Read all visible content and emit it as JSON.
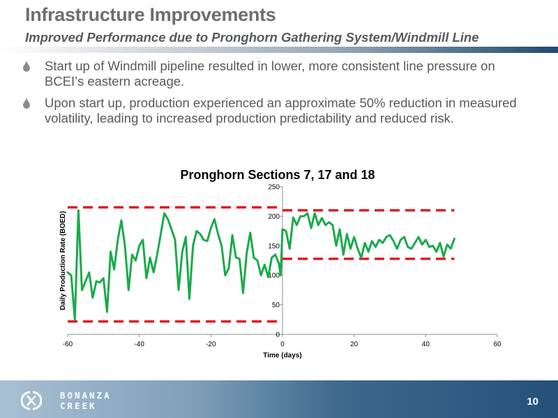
{
  "slide": {
    "title": "Infrastructure Improvements",
    "subtitle": "Improved Performance due to Pronghorn Gathering System/Windmill Line",
    "bullets": [
      "Start up of Windmill pipeline resulted in lower, more consistent line pressure on BCEI’s eastern acreage.",
      "Upon start up, production experienced an approximate 50% reduction in measured volatility, leading to increased production predictability and reduced risk."
    ],
    "page_number": "10",
    "logo": {
      "line1": "BONANZA",
      "line2": "CREEK"
    },
    "colors": {
      "title_gray": "#6d6e71",
      "series_green": "#1aaa4b",
      "band_red": "#e21b23",
      "footer_blue": "#24507a",
      "bullet_gray": "#8a8b8e"
    }
  },
  "chart_data": {
    "type": "line",
    "title": "Pronghorn Sections 7, 17 and 18",
    "xlabel": "Time (days)",
    "ylabel": "Daily Production Rate (BOED)",
    "xlim": [
      -60,
      60
    ],
    "ylim": [
      0,
      250
    ],
    "xticks": [
      -60,
      -40,
      -20,
      0,
      20,
      40,
      60
    ],
    "yticks": [
      0,
      50,
      100,
      150,
      200,
      250
    ],
    "grid": false,
    "series": [
      {
        "color": "#1aaa4b",
        "points": [
          [
            -60,
            105
          ],
          [
            -59,
            100
          ],
          [
            -58,
            25
          ],
          [
            -57,
            210
          ],
          [
            -56,
            75
          ],
          [
            -55,
            90
          ],
          [
            -54,
            105
          ],
          [
            -53,
            62
          ],
          [
            -52,
            90
          ],
          [
            -51,
            88
          ],
          [
            -50,
            95
          ],
          [
            -49,
            38
          ],
          [
            -48,
            140
          ],
          [
            -47,
            110
          ],
          [
            -46,
            160
          ],
          [
            -45,
            193
          ],
          [
            -44,
            150
          ],
          [
            -43,
            75
          ],
          [
            -42,
            135
          ],
          [
            -41,
            125
          ],
          [
            -40,
            150
          ],
          [
            -39,
            160
          ],
          [
            -38,
            95
          ],
          [
            -37,
            130
          ],
          [
            -36,
            105
          ],
          [
            -35,
            135
          ],
          [
            -34,
            170
          ],
          [
            -33,
            205
          ],
          [
            -32,
            195
          ],
          [
            -31,
            178
          ],
          [
            -30,
            160
          ],
          [
            -29,
            75
          ],
          [
            -28,
            140
          ],
          [
            -27,
            165
          ],
          [
            -26,
            60
          ],
          [
            -25,
            150
          ],
          [
            -24,
            175
          ],
          [
            -23,
            170
          ],
          [
            -22,
            160
          ],
          [
            -21,
            158
          ],
          [
            -20,
            180
          ],
          [
            -19,
            195
          ],
          [
            -18,
            170
          ],
          [
            -17,
            150
          ],
          [
            -16,
            100
          ],
          [
            -15,
            112
          ],
          [
            -14,
            168
          ],
          [
            -13,
            130
          ],
          [
            -12,
            128
          ],
          [
            -11,
            70
          ],
          [
            -10,
            138
          ],
          [
            -9,
            172
          ],
          [
            -8,
            130
          ],
          [
            -7,
            125
          ],
          [
            -6,
            100
          ],
          [
            -5,
            118
          ],
          [
            -4,
            97
          ],
          [
            -3,
            130
          ],
          [
            -2,
            135
          ],
          [
            -1,
            120
          ],
          [
            -0.5,
            100
          ],
          [
            0,
            178
          ],
          [
            1,
            175
          ],
          [
            2,
            145
          ],
          [
            3,
            198
          ],
          [
            4,
            185
          ],
          [
            5,
            200
          ],
          [
            6,
            200
          ],
          [
            7,
            205
          ],
          [
            8,
            180
          ],
          [
            9,
            205
          ],
          [
            10,
            185
          ],
          [
            11,
            197
          ],
          [
            12,
            185
          ],
          [
            13,
            190
          ],
          [
            14,
            185
          ],
          [
            15,
            150
          ],
          [
            16,
            178
          ],
          [
            17,
            135
          ],
          [
            18,
            170
          ],
          [
            19,
            145
          ],
          [
            20,
            165
          ],
          [
            21,
            145
          ],
          [
            22,
            130
          ],
          [
            23,
            155
          ],
          [
            24,
            140
          ],
          [
            25,
            158
          ],
          [
            26,
            148
          ],
          [
            27,
            160
          ],
          [
            28,
            155
          ],
          [
            29,
            165
          ],
          [
            30,
            168
          ],
          [
            31,
            158
          ],
          [
            32,
            145
          ],
          [
            33,
            160
          ],
          [
            34,
            165
          ],
          [
            35,
            148
          ],
          [
            36,
            145
          ],
          [
            37,
            155
          ],
          [
            38,
            165
          ],
          [
            39,
            152
          ],
          [
            40,
            160
          ],
          [
            41,
            148
          ],
          [
            42,
            150
          ],
          [
            43,
            140
          ],
          [
            44,
            155
          ],
          [
            45,
            132
          ],
          [
            46,
            152
          ],
          [
            47,
            145
          ],
          [
            48,
            162
          ]
        ]
      }
    ],
    "bands": [
      {
        "x": [
          -60,
          0
        ],
        "y": 215
      },
      {
        "x": [
          -60,
          0
        ],
        "y": 22
      },
      {
        "x": [
          0,
          48
        ],
        "y": 210
      },
      {
        "x": [
          0,
          48
        ],
        "y": 128
      }
    ]
  }
}
